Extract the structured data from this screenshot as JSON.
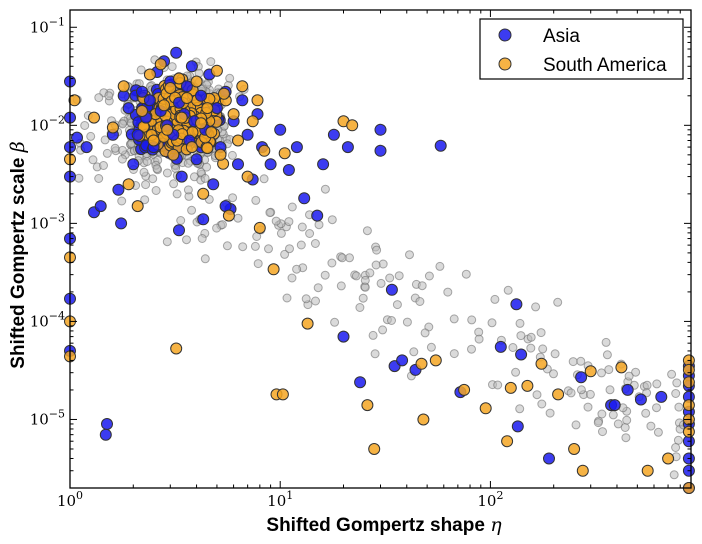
{
  "chart_data": {
    "type": "scatter",
    "title": "",
    "xlabel_text": "Shifted Gompertz shape",
    "xlabel_symbol": "η",
    "ylabel_text": "Shifted Gompertz scale",
    "ylabel_symbol": "β",
    "xscale": "log",
    "yscale": "log",
    "xlim": [
      1,
      900
    ],
    "ylim": [
      2e-06,
      0.15
    ],
    "x_ticks": [
      {
        "value": 1,
        "base": "10",
        "exp": "0"
      },
      {
        "value": 10,
        "base": "10",
        "exp": "1"
      },
      {
        "value": 100,
        "base": "10",
        "exp": "2"
      }
    ],
    "y_ticks": [
      {
        "value": 1e-05,
        "base": "10",
        "exp": "−5"
      },
      {
        "value": 0.0001,
        "base": "10",
        "exp": "−4"
      },
      {
        "value": 0.001,
        "base": "10",
        "exp": "−3"
      },
      {
        "value": 0.01,
        "base": "10",
        "exp": "−2"
      },
      {
        "value": 0.1,
        "base": "10",
        "exp": "−1"
      }
    ],
    "grid": false,
    "legend_position": "top-right",
    "colors": {
      "asia": "#1a1aee",
      "south_america": "#f5a623",
      "other": "#bbbbbb",
      "edge": "#333333"
    },
    "series": [
      {
        "name": "Asia",
        "points": [
          [
            1.0,
            0.028
          ],
          [
            1.0,
            0.012
          ],
          [
            1.0,
            0.006
          ],
          [
            1.0,
            0.003
          ],
          [
            1.0,
            0.0007
          ],
          [
            1.0,
            0.00017
          ],
          [
            1.0,
            5e-05
          ],
          [
            1.08,
            0.0075
          ],
          [
            1.2,
            0.006
          ],
          [
            1.3,
            0.0013
          ],
          [
            1.4,
            0.0015
          ],
          [
            1.5,
            9e-06
          ],
          [
            1.48,
            7e-06
          ],
          [
            1.6,
            0.008
          ],
          [
            1.7,
            0.0022
          ],
          [
            1.75,
            0.001
          ],
          [
            1.8,
            0.02
          ],
          [
            1.9,
            0.015
          ],
          [
            2.0,
            0.004
          ],
          [
            2.1,
            0.008
          ],
          [
            2.2,
            0.022
          ],
          [
            2.3,
            0.012
          ],
          [
            2.4,
            0.018
          ],
          [
            2.5,
            0.006
          ],
          [
            2.6,
            0.035
          ],
          [
            2.7,
            0.014
          ],
          [
            2.8,
            0.045
          ],
          [
            2.9,
            0.01
          ],
          [
            3.0,
            0.028
          ],
          [
            3.1,
            0.008
          ],
          [
            3.2,
            0.055
          ],
          [
            3.3,
            0.017
          ],
          [
            3.4,
            0.003
          ],
          [
            3.5,
            0.013
          ],
          [
            3.6,
            0.025
          ],
          [
            3.7,
            0.007
          ],
          [
            3.8,
            0.04
          ],
          [
            3.9,
            0.011
          ],
          [
            4.0,
            0.0045
          ],
          [
            4.2,
            0.02
          ],
          [
            4.4,
            0.009
          ],
          [
            4.6,
            0.033
          ],
          [
            4.8,
            0.0025
          ],
          [
            5.0,
            0.015
          ],
          [
            5.2,
            0.006
          ],
          [
            5.5,
            0.022
          ],
          [
            5.8,
            0.0014
          ],
          [
            6.0,
            0.011
          ],
          [
            6.3,
            0.004
          ],
          [
            6.6,
            0.018
          ],
          [
            7.0,
            0.008
          ],
          [
            7.4,
            0.0028
          ],
          [
            7.8,
            0.013
          ],
          [
            8.2,
            0.006
          ],
          [
            9.0,
            0.004
          ],
          [
            10.0,
            0.009
          ],
          [
            11.0,
            0.0035
          ],
          [
            3.3,
            0.00085
          ],
          [
            4.3,
            0.0011
          ],
          [
            5.5,
            0.0015
          ],
          [
            12.0,
            0.006
          ],
          [
            13.0,
            0.0018
          ],
          [
            15.0,
            0.0012
          ],
          [
            16.0,
            0.004
          ],
          [
            18.0,
            0.008
          ],
          [
            20.0,
            7e-05
          ],
          [
            21.0,
            0.006
          ],
          [
            24.0,
            2.4e-05
          ],
          [
            30.0,
            0.009
          ],
          [
            30.0,
            0.0055
          ],
          [
            34.0,
            0.00021
          ],
          [
            35.0,
            3.5e-05
          ],
          [
            38.0,
            4e-05
          ],
          [
            44.0,
            3.2e-05
          ],
          [
            58.0,
            0.0062
          ],
          [
            72.0,
            1.9e-05
          ],
          [
            112.0,
            5.5e-05
          ],
          [
            133.0,
            0.00015
          ],
          [
            140.0,
            4.6e-05
          ],
          [
            135.0,
            8.5e-06
          ],
          [
            190.0,
            4e-06
          ],
          [
            270.0,
            2.7e-05
          ],
          [
            375.0,
            1.4e-05
          ],
          [
            390.0,
            1.4e-05
          ],
          [
            450.0,
            2e-05
          ],
          [
            520.0,
            1.6e-05
          ],
          [
            650.0,
            1.7e-05
          ],
          [
            880.0,
            3.5e-05
          ],
          [
            880.0,
            2.8e-05
          ],
          [
            880.0,
            2.2e-05
          ],
          [
            880.0,
            1.7e-05
          ],
          [
            880.0,
            1.2e-05
          ],
          [
            880.0,
            9e-06
          ],
          [
            880.0,
            6e-06
          ],
          [
            880.0,
            4e-06
          ],
          [
            880.0,
            3e-06
          ],
          [
            880.0,
            2e-06
          ]
        ]
      },
      {
        "name": "South America",
        "points": [
          [
            1.0,
            0.0045
          ],
          [
            1.0,
            0.00045
          ],
          [
            1.0,
            0.0001
          ],
          [
            1.0,
            4.4e-05
          ],
          [
            1.05,
            0.018
          ],
          [
            1.3,
            0.012
          ],
          [
            1.6,
            0.0095
          ],
          [
            1.8,
            0.025
          ],
          [
            1.9,
            0.0025
          ],
          [
            2.1,
            0.0015
          ],
          [
            2.2,
            0.014
          ],
          [
            2.4,
            0.033
          ],
          [
            2.5,
            0.007
          ],
          [
            2.7,
            0.042
          ],
          [
            2.8,
            0.016
          ],
          [
            2.9,
            0.009
          ],
          [
            3.0,
            0.024
          ],
          [
            3.1,
            0.005
          ],
          [
            3.2,
            5.3e-05
          ],
          [
            3.3,
            0.03
          ],
          [
            3.4,
            0.012
          ],
          [
            3.6,
            0.019
          ],
          [
            3.8,
            0.006
          ],
          [
            4.0,
            0.028
          ],
          [
            4.2,
            0.0105
          ],
          [
            4.3,
            0.002
          ],
          [
            4.5,
            0.015
          ],
          [
            4.7,
            0.0085
          ],
          [
            5.0,
            0.036
          ],
          [
            5.2,
            0.005
          ],
          [
            5.4,
            0.021
          ],
          [
            5.7,
            0.0012
          ],
          [
            6.0,
            0.013
          ],
          [
            6.3,
            0.007
          ],
          [
            6.6,
            0.025
          ],
          [
            7.0,
            0.003
          ],
          [
            7.4,
            0.011
          ],
          [
            7.8,
            0.018
          ],
          [
            8.0,
            0.0009
          ],
          [
            8.4,
            0.0055
          ],
          [
            9.3,
            0.00034
          ],
          [
            9.6,
            1.8e-05
          ],
          [
            10.3,
            1.8e-05
          ],
          [
            10.5,
            0.0052
          ],
          [
            13.5,
            9.5e-05
          ],
          [
            20.0,
            0.011
          ],
          [
            22.0,
            0.01
          ],
          [
            26.0,
            1.4e-05
          ],
          [
            28.0,
            5e-06
          ],
          [
            47.0,
            3.7e-05
          ],
          [
            48.0,
            1e-05
          ],
          [
            55.0,
            4e-05
          ],
          [
            75.0,
            2e-05
          ],
          [
            95.0,
            1.3e-05
          ],
          [
            120.0,
            6e-06
          ],
          [
            125.0,
            2.1e-05
          ],
          [
            150.0,
            2.2e-05
          ],
          [
            175.0,
            3.7e-05
          ],
          [
            210.0,
            1.8e-05
          ],
          [
            250.0,
            5e-06
          ],
          [
            275.0,
            3e-06
          ],
          [
            300.0,
            3.1e-05
          ],
          [
            420.0,
            3.4e-05
          ],
          [
            560.0,
            3e-06
          ],
          [
            700.0,
            4e-06
          ],
          [
            880.0,
            4e-05
          ],
          [
            880.0,
            3.2e-05
          ],
          [
            880.0,
            2.4e-05
          ],
          [
            880.0,
            1.4e-05
          ],
          [
            880.0,
            1e-05
          ],
          [
            880.0,
            7.5e-06
          ],
          [
            880.0,
            2e-06
          ]
        ]
      }
    ],
    "legend": [
      {
        "label": "Asia"
      },
      {
        "label": "South America"
      }
    ]
  }
}
